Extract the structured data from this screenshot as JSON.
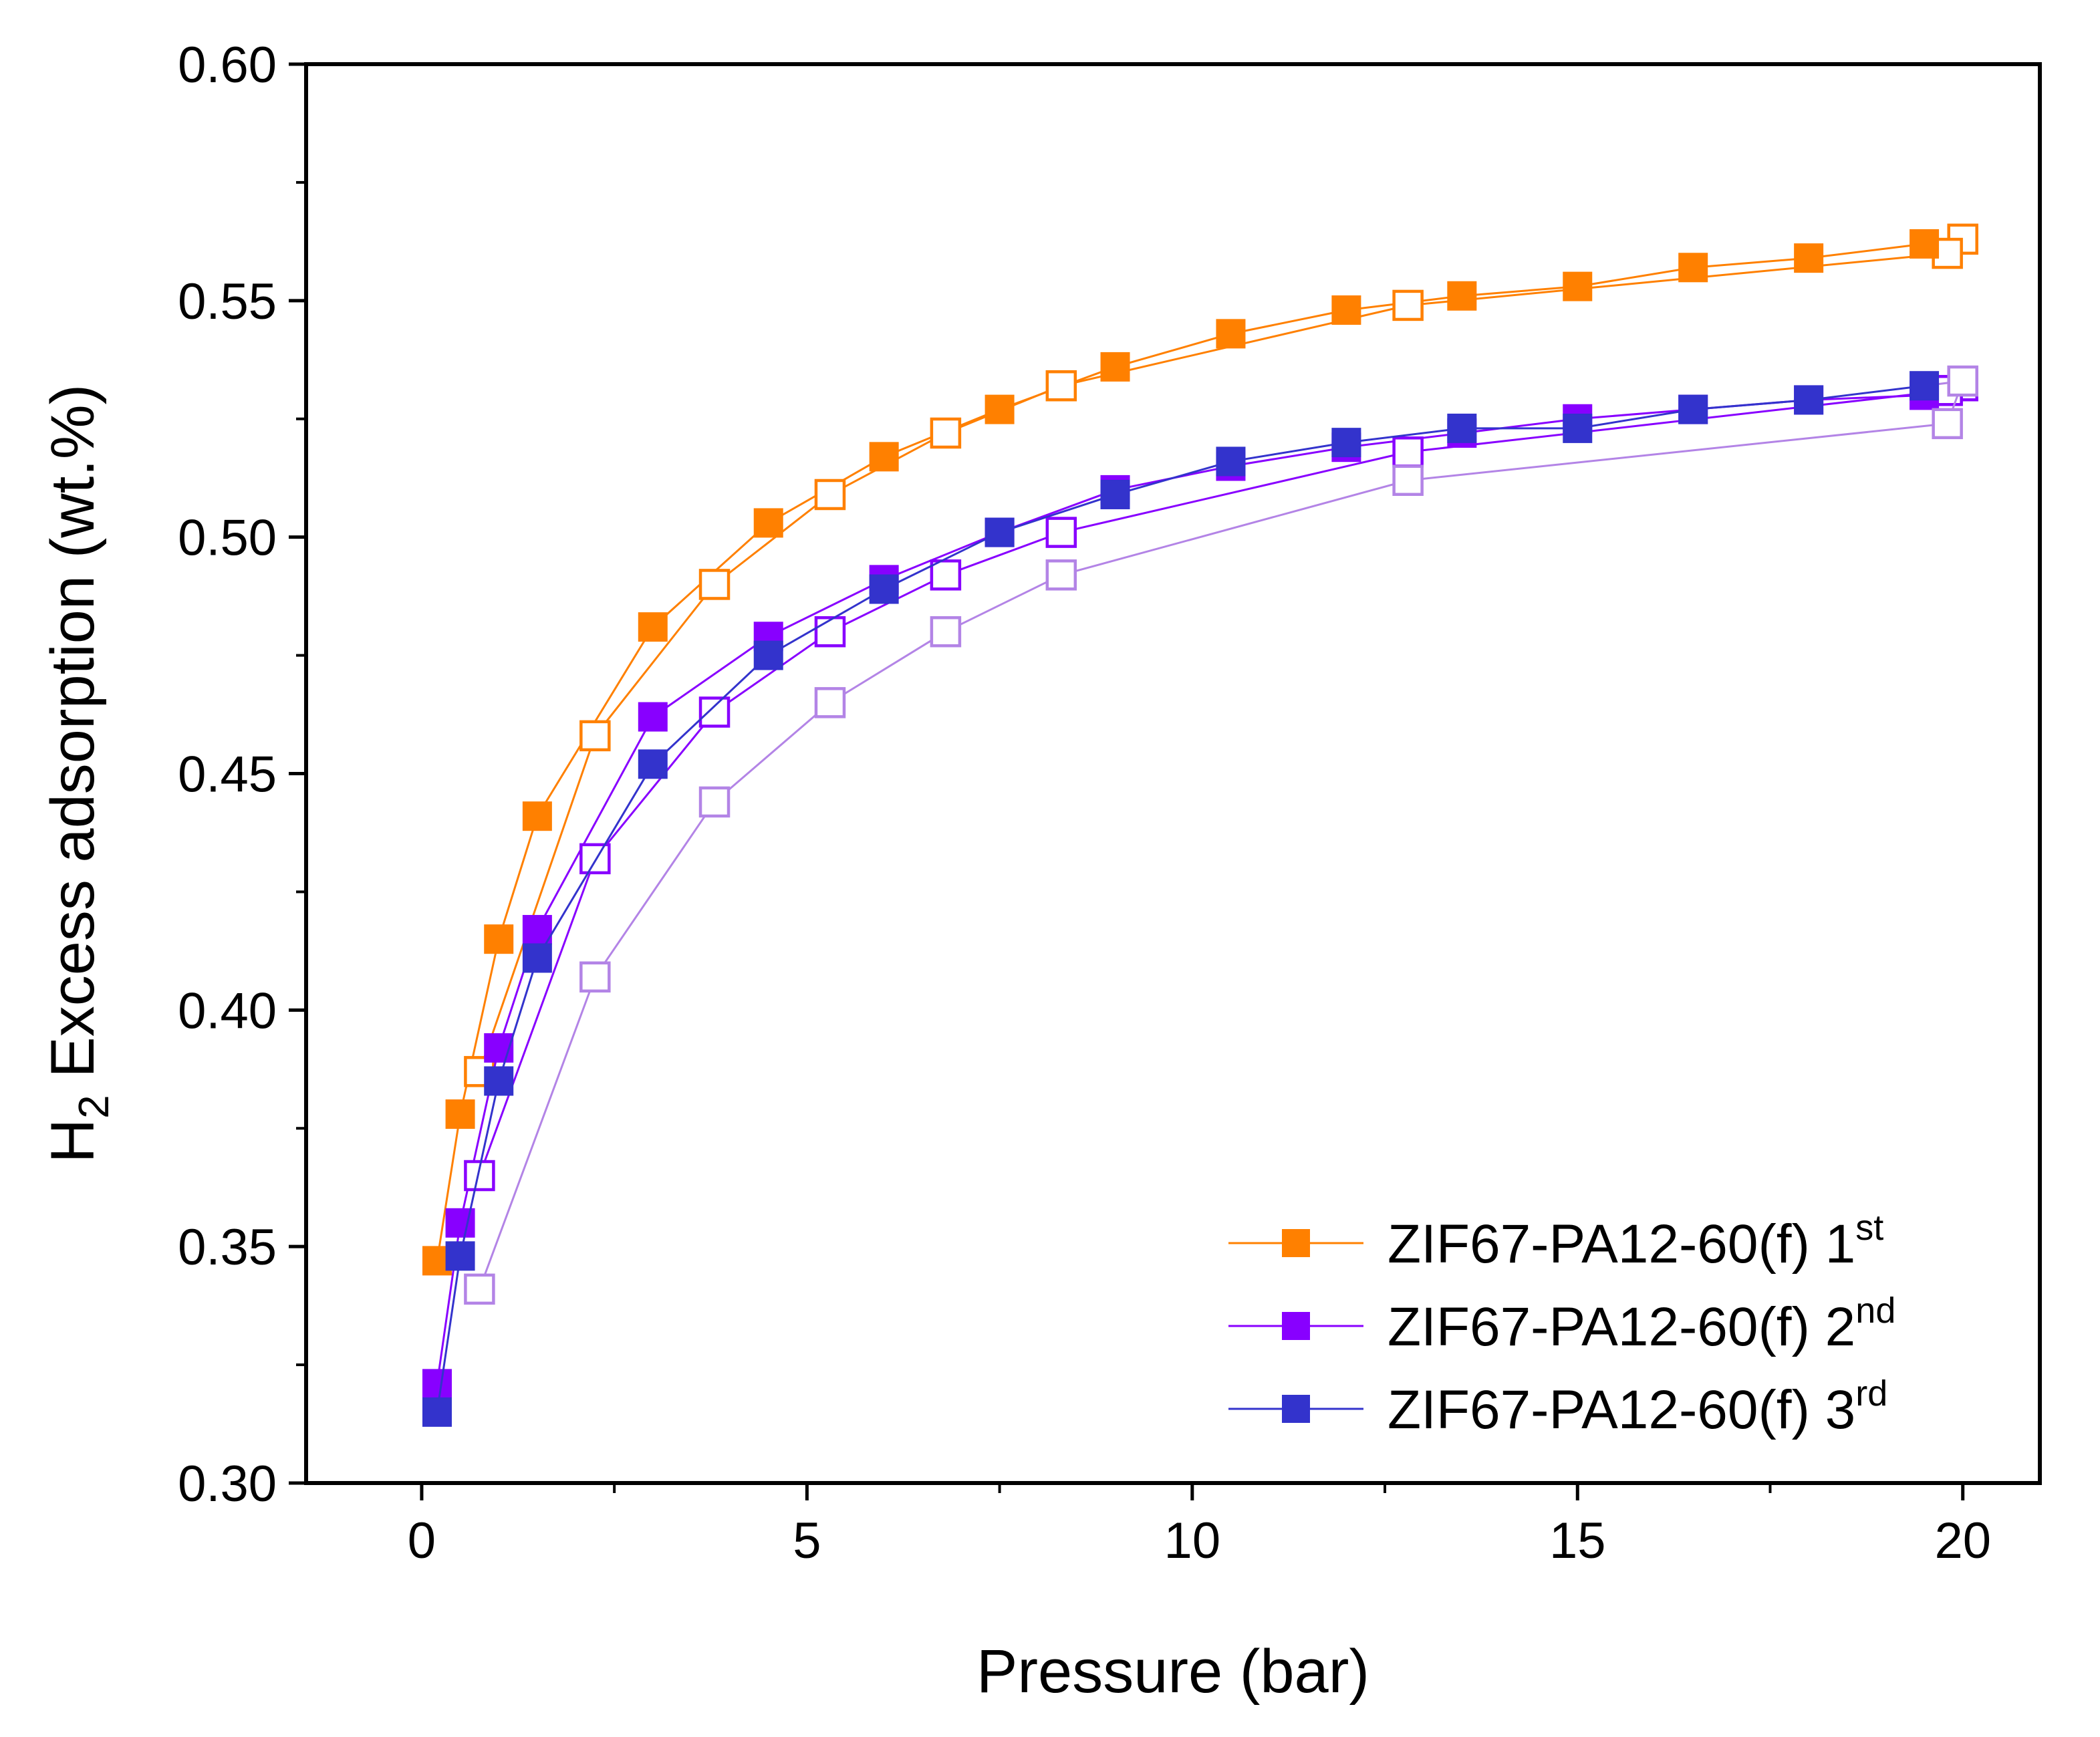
{
  "chart_data": {
    "type": "line",
    "title": "",
    "xlabel": "Pressure (bar)",
    "ylabel_main": "H",
    "ylabel_sub": "2",
    "ylabel_rest": " Excess adsorption (wt.%)",
    "xlim": [
      -1.5,
      21
    ],
    "ylim": [
      0.3,
      0.6
    ],
    "xticks": [
      0,
      5,
      10,
      15,
      20
    ],
    "xtick_labels": [
      "0",
      "5",
      "10",
      "15",
      "20"
    ],
    "yticks": [
      0.3,
      0.35,
      0.4,
      0.45,
      0.5,
      0.55,
      0.6
    ],
    "ytick_labels": [
      "0.30",
      "0.35",
      "0.40",
      "0.45",
      "0.50",
      "0.55",
      "0.60"
    ],
    "legend_position": "bottom-right",
    "series": [
      {
        "name": "ZIF67-PA12-60(f) 1st",
        "legend_base": "ZIF67-PA12-60(f) 1",
        "legend_sup": "st",
        "color": "#FF8000",
        "adsorption": {
          "x": [
            0.2,
            0.5,
            1.0,
            1.5,
            3.0,
            4.5,
            6.0,
            7.5,
            9.0,
            10.5,
            12.0,
            13.5,
            15.0,
            16.5,
            18.0,
            19.5
          ],
          "y": [
            0.347,
            0.378,
            0.415,
            0.441,
            0.481,
            0.503,
            0.517,
            0.527,
            0.536,
            0.543,
            0.548,
            0.551,
            0.553,
            0.557,
            0.559,
            0.562
          ]
        },
        "desorption": {
          "x": [
            20.0,
            19.8,
            12.8,
            8.3,
            6.8,
            5.3,
            3.8,
            2.25,
            0.75
          ],
          "y": [
            0.563,
            0.56,
            0.549,
            0.532,
            0.522,
            0.509,
            0.49,
            0.458,
            0.387
          ]
        }
      },
      {
        "name": "ZIF67-PA12-60(f) 2nd",
        "legend_base": "ZIF67-PA12-60(f) 2",
        "legend_sup": "nd",
        "color": "#8800FF",
        "adsorption": {
          "x": [
            0.2,
            0.5,
            1.0,
            1.5,
            3.0,
            4.5,
            6.0,
            7.5,
            9.0,
            10.5,
            12.0,
            13.5,
            15.0,
            16.5,
            18.0,
            19.5
          ],
          "y": [
            0.321,
            0.355,
            0.392,
            0.417,
            0.462,
            0.479,
            0.491,
            0.501,
            0.51,
            0.515,
            0.519,
            0.522,
            0.525,
            0.527,
            0.529,
            0.53
          ]
        },
        "desorption": {
          "x": [
            20.0,
            19.8,
            12.8,
            8.3,
            6.8,
            5.3,
            3.8,
            2.25,
            0.75
          ],
          "y": [
            0.532,
            0.531,
            0.518,
            0.501,
            0.492,
            0.48,
            0.463,
            0.432,
            0.365
          ]
        }
      },
      {
        "name": "ZIF67-PA12-60(f) 3rd",
        "legend_base": "ZIF67-PA12-60(f) 3",
        "legend_sup": "rd",
        "color": "#3333CC",
        "adsorption": {
          "x": [
            0.2,
            0.5,
            1.0,
            1.5,
            3.0,
            4.5,
            6.0,
            7.5,
            9.0,
            10.5,
            12.0,
            13.5,
            15.0,
            16.5,
            18.0,
            19.5
          ],
          "y": [
            0.315,
            0.348,
            0.385,
            0.411,
            0.452,
            0.475,
            0.489,
            0.501,
            0.509,
            0.516,
            0.52,
            0.523,
            0.523,
            0.527,
            0.529,
            0.532
          ]
        },
        "desorption": {
          "x": [
            20.0,
            19.8,
            12.8,
            8.3,
            6.8,
            5.3,
            3.8,
            2.25,
            0.75
          ],
          "y": [
            0.533,
            0.524,
            0.512,
            0.492,
            0.48,
            0.465,
            0.444,
            0.407,
            0.341
          ]
        },
        "desorption_color": "#B384E6"
      }
    ]
  }
}
